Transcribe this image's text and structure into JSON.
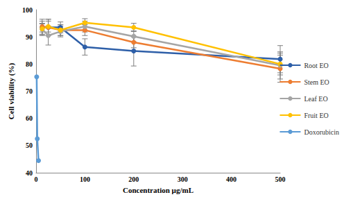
{
  "chart_data": {
    "type": "line",
    "x_label": "Concentration µg/mL",
    "y_label": "Cell viability (%)",
    "xlim": [
      0,
      500
    ],
    "xticks": [
      0,
      100,
      200,
      300,
      400,
      500
    ],
    "ylim": [
      40,
      100
    ],
    "yticks": [
      40,
      50,
      60,
      70,
      80,
      90,
      100
    ],
    "grid": false,
    "legend": "right",
    "marker": "circle",
    "series": [
      {
        "name": "Root EO",
        "color": "#2e5fa8",
        "x": [
          12.5,
          25,
          50,
          100,
          200,
          500
        ],
        "values": [
          93.5,
          93.5,
          93.5,
          86.3,
          84.8,
          81.8
        ],
        "errors": [
          3,
          3,
          2,
          3,
          5.5,
          5
        ]
      },
      {
        "name": "Stem EO",
        "color": "#ed7d31",
        "x": [
          12.5,
          25,
          50,
          100,
          200,
          500
        ],
        "values": [
          93.8,
          93.5,
          92.5,
          92.5,
          88,
          78.3
        ],
        "errors": [
          2,
          3,
          2,
          2,
          2,
          5
        ]
      },
      {
        "name": "Leaf EO",
        "color": "#a5a5a5",
        "x": [
          12.5,
          25,
          50,
          100,
          200,
          500
        ],
        "values": [
          92.8,
          90.5,
          92,
          93.8,
          90.2,
          79.5
        ],
        "errors": [
          2,
          3.5,
          2,
          2,
          2,
          5
        ]
      },
      {
        "name": "Fruit EO",
        "color": "#ffc000",
        "x": [
          12.5,
          25,
          50,
          100,
          200,
          500
        ],
        "values": [
          93,
          93.8,
          92.5,
          95.2,
          93.5,
          80
        ],
        "errors": [
          2,
          2,
          2,
          1.5,
          1.5,
          4
        ]
      },
      {
        "name": "Doxorubicin",
        "color": "#5b9bd5",
        "x": [
          1.25,
          2.5,
          5
        ],
        "values": [
          75.3,
          52.5,
          44.5
        ]
      }
    ]
  }
}
